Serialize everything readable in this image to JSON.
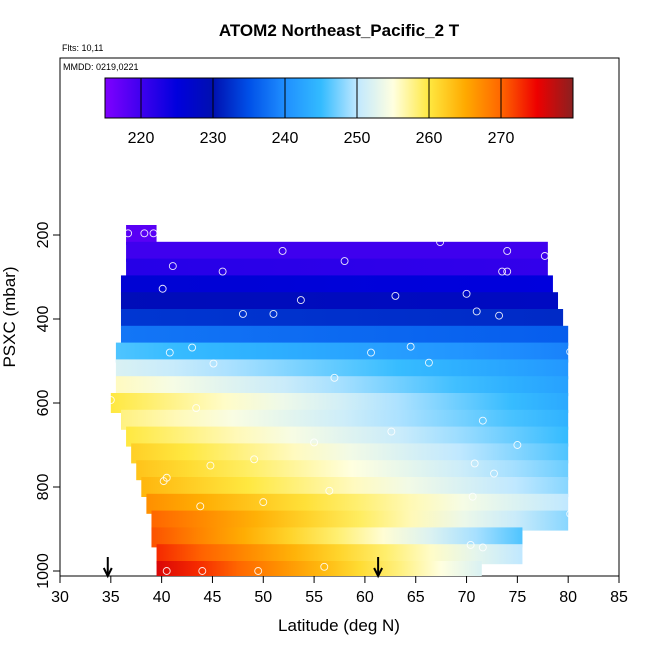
{
  "chart_data": {
    "type": "heatmap",
    "title": "ATOM2 Northeast_Pacific_2 T",
    "flights_label": "Flts: 10,11",
    "dates_label": "MMDD: 0219,0221",
    "xlabel": "Latitude (deg N)",
    "ylabel": "PSXC (mbar)",
    "xlim": [
      30,
      85
    ],
    "ylim": [
      1000,
      100
    ],
    "y_reversed": true,
    "x_ticks": [
      "30",
      "35",
      "40",
      "45",
      "50",
      "55",
      "60",
      "65",
      "70",
      "75",
      "80",
      "85"
    ],
    "y_ticks": [
      "200",
      "400",
      "600",
      "800",
      "1000"
    ],
    "colorbar": {
      "range": [
        215,
        280
      ],
      "ticks": [
        "220",
        "230",
        "240",
        "250",
        "260",
        "270"
      ]
    },
    "rows": [
      {
        "p": 200,
        "lat_min": 36.5,
        "lat_max": 39.5,
        "t_start": 218,
        "t_end": 218
      },
      {
        "p": 240,
        "lat_min": 36.5,
        "lat_max": 78.0,
        "t_start": 220,
        "t_end": 220
      },
      {
        "p": 280,
        "lat_min": 36.5,
        "lat_max": 78.0,
        "t_start": 222,
        "t_end": 221
      },
      {
        "p": 320,
        "lat_min": 36.0,
        "lat_max": 78.5,
        "t_start": 226,
        "t_end": 225
      },
      {
        "p": 360,
        "lat_min": 36.0,
        "lat_max": 79.0,
        "t_start": 229,
        "t_end": 228
      },
      {
        "p": 400,
        "lat_min": 36.0,
        "lat_max": 79.5,
        "t_start": 233,
        "t_end": 232
      },
      {
        "p": 440,
        "lat_min": 36.0,
        "lat_max": 80.0,
        "t_start": 238,
        "t_end": 236
      },
      {
        "p": 480,
        "lat_min": 35.5,
        "lat_max": 80.0,
        "t_start": 246,
        "t_end": 239
      },
      {
        "p": 520,
        "lat_min": 35.5,
        "lat_max": 80.0,
        "t_start": 252,
        "t_end": 241
      },
      {
        "p": 560,
        "lat_min": 35.5,
        "lat_max": 80.0,
        "t_start": 256,
        "t_end": 242
      },
      {
        "p": 600,
        "lat_min": 35.0,
        "lat_max": 80.0,
        "t_start": 260,
        "t_end": 243
      },
      {
        "p": 640,
        "lat_min": 36.0,
        "lat_max": 80.0,
        "t_start": 258,
        "t_end": 244
      },
      {
        "p": 680,
        "lat_min": 36.5,
        "lat_max": 80.0,
        "t_start": 260,
        "t_end": 245
      },
      {
        "p": 720,
        "lat_min": 37.0,
        "lat_max": 80.0,
        "t_start": 262,
        "t_end": 246
      },
      {
        "p": 760,
        "lat_min": 37.5,
        "lat_max": 80.0,
        "t_start": 263,
        "t_end": 247
      },
      {
        "p": 800,
        "lat_min": 38.0,
        "lat_max": 80.0,
        "t_start": 264,
        "t_end": 248
      },
      {
        "p": 840,
        "lat_min": 38.5,
        "lat_max": 80.0,
        "t_start": 267,
        "t_end": 250
      },
      {
        "p": 880,
        "lat_min": 39.0,
        "lat_max": 80.0,
        "t_start": 270,
        "t_end": 248
      },
      {
        "p": 920,
        "lat_min": 39.0,
        "lat_max": 75.5,
        "t_start": 271,
        "t_end": 246
      },
      {
        "p": 960,
        "lat_min": 39.5,
        "lat_max": 75.5,
        "t_start": 273,
        "t_end": 250
      },
      {
        "p": 1000,
        "lat_min": 39.5,
        "lat_max": 71.5,
        "t_start": 276,
        "t_end": 252
      }
    ],
    "obs_points": [
      {
        "lat": 36.7,
        "p": 196
      },
      {
        "lat": 38.3,
        "p": 196
      },
      {
        "lat": 39.2,
        "p": 196
      },
      {
        "lat": 51.9,
        "p": 238
      },
      {
        "lat": 67.4,
        "p": 217
      },
      {
        "lat": 74.0,
        "p": 238
      },
      {
        "lat": 77.7,
        "p": 250
      },
      {
        "lat": 41.1,
        "p": 274
      },
      {
        "lat": 46.0,
        "p": 287
      },
      {
        "lat": 58.0,
        "p": 262
      },
      {
        "lat": 73.5,
        "p": 287
      },
      {
        "lat": 74.0,
        "p": 287
      },
      {
        "lat": 40.1,
        "p": 328
      },
      {
        "lat": 53.7,
        "p": 355
      },
      {
        "lat": 63.0,
        "p": 345
      },
      {
        "lat": 70.0,
        "p": 340
      },
      {
        "lat": 48.0,
        "p": 388
      },
      {
        "lat": 51.0,
        "p": 388
      },
      {
        "lat": 71.0,
        "p": 382
      },
      {
        "lat": 73.2,
        "p": 392
      },
      {
        "lat": 40.8,
        "p": 480
      },
      {
        "lat": 43.0,
        "p": 468
      },
      {
        "lat": 45.1,
        "p": 506
      },
      {
        "lat": 60.6,
        "p": 480
      },
      {
        "lat": 64.5,
        "p": 466
      },
      {
        "lat": 66.3,
        "p": 504
      },
      {
        "lat": 80.2,
        "p": 478
      },
      {
        "lat": 57.0,
        "p": 540
      },
      {
        "lat": 35.0,
        "p": 593
      },
      {
        "lat": 43.4,
        "p": 612
      },
      {
        "lat": 62.6,
        "p": 668
      },
      {
        "lat": 71.6,
        "p": 642
      },
      {
        "lat": 55.0,
        "p": 694
      },
      {
        "lat": 75.0,
        "p": 700
      },
      {
        "lat": 44.8,
        "p": 749
      },
      {
        "lat": 49.1,
        "p": 734
      },
      {
        "lat": 70.8,
        "p": 744
      },
      {
        "lat": 72.7,
        "p": 768
      },
      {
        "lat": 40.5,
        "p": 778
      },
      {
        "lat": 40.2,
        "p": 786
      },
      {
        "lat": 56.5,
        "p": 809
      },
      {
        "lat": 70.6,
        "p": 823
      },
      {
        "lat": 50.0,
        "p": 836
      },
      {
        "lat": 43.8,
        "p": 846
      },
      {
        "lat": 80.2,
        "p": 864
      },
      {
        "lat": 70.4,
        "p": 938
      },
      {
        "lat": 71.6,
        "p": 944
      },
      {
        "lat": 40.5,
        "p": 1000
      },
      {
        "lat": 44.0,
        "p": 1000
      },
      {
        "lat": 49.5,
        "p": 1000
      },
      {
        "lat": 56.0,
        "p": 990
      }
    ],
    "flight_markers_lat": [
      34.7,
      61.3
    ]
  },
  "colors": {
    "colormap": [
      "#7f00ff",
      "#3f00ee",
      "#0000dd",
      "#0010b0",
      "#0050e8",
      "#1f8fff",
      "#33bbff",
      "#c0e8ff",
      "#ffffe0",
      "#ffe840",
      "#ffaa00",
      "#ff6600",
      "#ee0000",
      "#8b2020"
    ]
  }
}
